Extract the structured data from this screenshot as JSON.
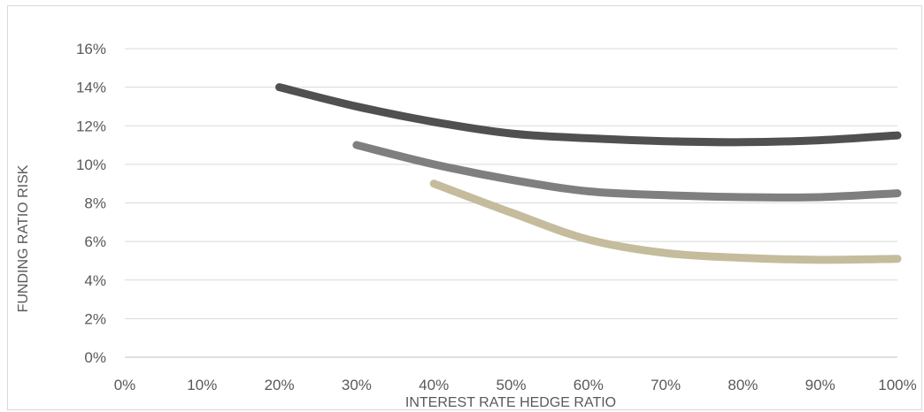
{
  "chart_data": {
    "type": "line",
    "title": "",
    "xlabel": "INTEREST RATE HEDGE RATIO",
    "ylabel": "FUNDING RATIO RISK",
    "xlim": [
      0,
      100
    ],
    "ylim": [
      0,
      16
    ],
    "x_ticks": [
      "0%",
      "10%",
      "20%",
      "30%",
      "40%",
      "50%",
      "60%",
      "70%",
      "80%",
      "90%",
      "100%"
    ],
    "y_ticks": [
      "0%",
      "2%",
      "4%",
      "6%",
      "8%",
      "10%",
      "12%",
      "14%",
      "16%"
    ],
    "grid": true,
    "legend": "none",
    "series": [
      {
        "color": "#505050",
        "x": [
          20,
          30,
          40,
          50,
          60,
          70,
          80,
          90,
          100
        ],
        "y": [
          14.0,
          13.0,
          12.2,
          11.6,
          11.35,
          11.2,
          11.15,
          11.25,
          11.5
        ]
      },
      {
        "color": "#7f7f7f",
        "x": [
          30,
          40,
          50,
          60,
          70,
          80,
          90,
          100
        ],
        "y": [
          11.0,
          10.0,
          9.2,
          8.6,
          8.4,
          8.3,
          8.3,
          8.5
        ]
      },
      {
        "color": "#c4bc9c",
        "x": [
          40,
          50,
          60,
          70,
          80,
          90,
          100
        ],
        "y": [
          9.0,
          7.5,
          6.1,
          5.4,
          5.15,
          5.05,
          5.1
        ]
      }
    ]
  }
}
